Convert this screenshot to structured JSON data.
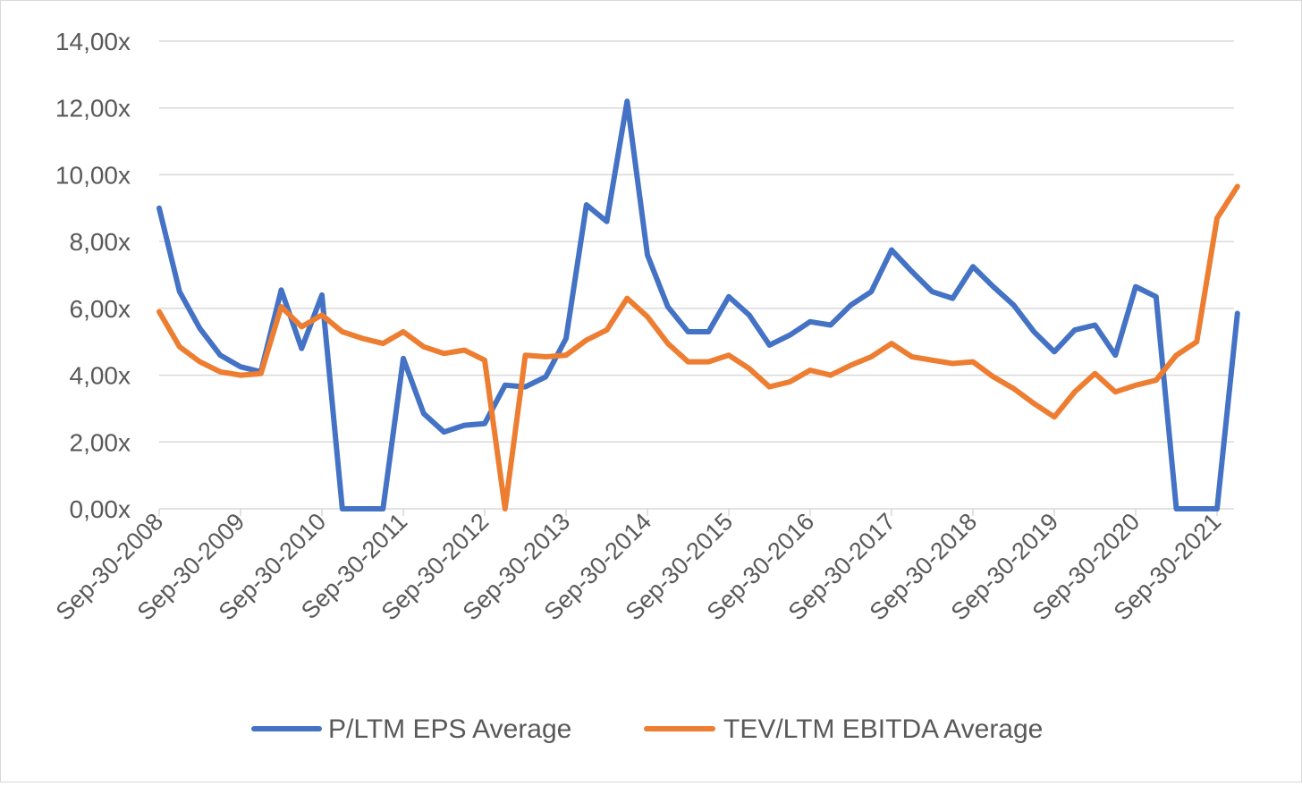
{
  "chart_data": {
    "type": "line",
    "ylim": [
      0,
      14
    ],
    "y_tick_labels": [
      "0,00x",
      "2,00x",
      "4,00x",
      "6,00x",
      "8,00x",
      "10,00x",
      "12,00x",
      "14,00x"
    ],
    "x_tick_labels": [
      "Sep-30-2008",
      "Sep-30-2009",
      "Sep-30-2010",
      "Sep-30-2011",
      "Sep-30-2012",
      "Sep-30-2013",
      "Sep-30-2014",
      "Sep-30-2015",
      "Sep-30-2016",
      "Sep-30-2017",
      "Sep-30-2018",
      "Sep-30-2019",
      "Sep-30-2020",
      "Sep-30-2021"
    ],
    "x": [
      "Sep-30-2008",
      "Dec-31-2008",
      "Mar-31-2009",
      "Jun-30-2009",
      "Sep-30-2009",
      "Dec-31-2009",
      "Mar-31-2010",
      "Jun-30-2010",
      "Sep-30-2010",
      "Dec-31-2010",
      "Mar-31-2011",
      "Jun-30-2011",
      "Sep-30-2011",
      "Dec-31-2011",
      "Mar-31-2012",
      "Jun-30-2012",
      "Sep-30-2012",
      "Dec-31-2012",
      "Mar-31-2013",
      "Jun-30-2013",
      "Sep-30-2013",
      "Dec-31-2013",
      "Mar-31-2014",
      "Jun-30-2014",
      "Sep-30-2014",
      "Dec-31-2014",
      "Mar-31-2015",
      "Jun-30-2015",
      "Sep-30-2015",
      "Dec-31-2015",
      "Mar-31-2016",
      "Jun-30-2016",
      "Sep-30-2016",
      "Dec-31-2016",
      "Mar-31-2017",
      "Jun-30-2017",
      "Sep-30-2017",
      "Dec-31-2017",
      "Mar-31-2018",
      "Jun-30-2018",
      "Sep-30-2018",
      "Dec-31-2018",
      "Mar-31-2019",
      "Jun-30-2019",
      "Sep-30-2019",
      "Dec-31-2019",
      "Mar-31-2020",
      "Jun-30-2020",
      "Sep-30-2020",
      "Dec-31-2020",
      "Mar-31-2021",
      "Jun-30-2021",
      "Sep-30-2021",
      "Dec-31-2021"
    ],
    "series": [
      {
        "name": "P/LTM EPS Average",
        "color": "#4472C4",
        "values": [
          9.0,
          6.5,
          5.4,
          4.6,
          4.25,
          4.1,
          6.55,
          4.8,
          6.4,
          0.0,
          0.0,
          0.0,
          4.5,
          2.85,
          2.3,
          2.5,
          2.55,
          3.7,
          3.65,
          3.95,
          5.1,
          9.1,
          8.6,
          12.2,
          7.6,
          6.05,
          5.3,
          5.3,
          6.35,
          5.8,
          4.9,
          5.2,
          5.6,
          5.5,
          6.1,
          6.5,
          7.75,
          7.1,
          6.5,
          6.3,
          7.25,
          6.65,
          6.1,
          5.3,
          4.7,
          5.35,
          5.5,
          4.6,
          6.65,
          6.35,
          0.0,
          0.0,
          0.0,
          5.85
        ]
      },
      {
        "name": "TEV/LTM EBITDA Average",
        "color": "#ED7D31",
        "values": [
          5.9,
          4.85,
          4.4,
          4.1,
          4.0,
          4.05,
          6.05,
          5.45,
          5.8,
          5.3,
          5.1,
          4.95,
          5.3,
          4.85,
          4.65,
          4.75,
          4.45,
          0.0,
          4.6,
          4.55,
          4.6,
          5.05,
          5.35,
          6.3,
          5.75,
          4.95,
          4.4,
          4.4,
          4.6,
          4.2,
          3.65,
          3.8,
          4.15,
          4.0,
          4.3,
          4.55,
          4.95,
          4.55,
          4.45,
          4.35,
          4.4,
          3.95,
          3.6,
          3.15,
          2.75,
          3.5,
          4.05,
          3.5,
          3.7,
          3.85,
          4.6,
          5.0,
          8.7,
          9.65
        ]
      }
    ],
    "legend_position": "bottom",
    "grid": "horizontal"
  }
}
